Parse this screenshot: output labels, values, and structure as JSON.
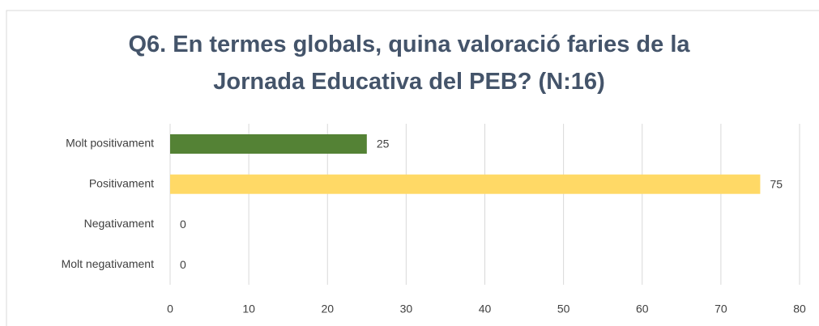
{
  "chart_data": {
    "type": "bar",
    "orientation": "horizontal",
    "title": "Q6. En termes globals, quina valoració faries de la Jornada Educativa del PEB? (N:16)",
    "categories": [
      "Molt positivament",
      "Positivament",
      "Negativament",
      "Molt negativament"
    ],
    "values": [
      25,
      75,
      0,
      0
    ],
    "colors": [
      "#548235",
      "#ffd966",
      "#a5a5a5",
      "#a5a5a5"
    ],
    "xlim": [
      0,
      80
    ],
    "xticks": [
      0,
      10,
      20,
      30,
      40,
      50,
      60,
      70,
      80
    ],
    "grid": true
  }
}
